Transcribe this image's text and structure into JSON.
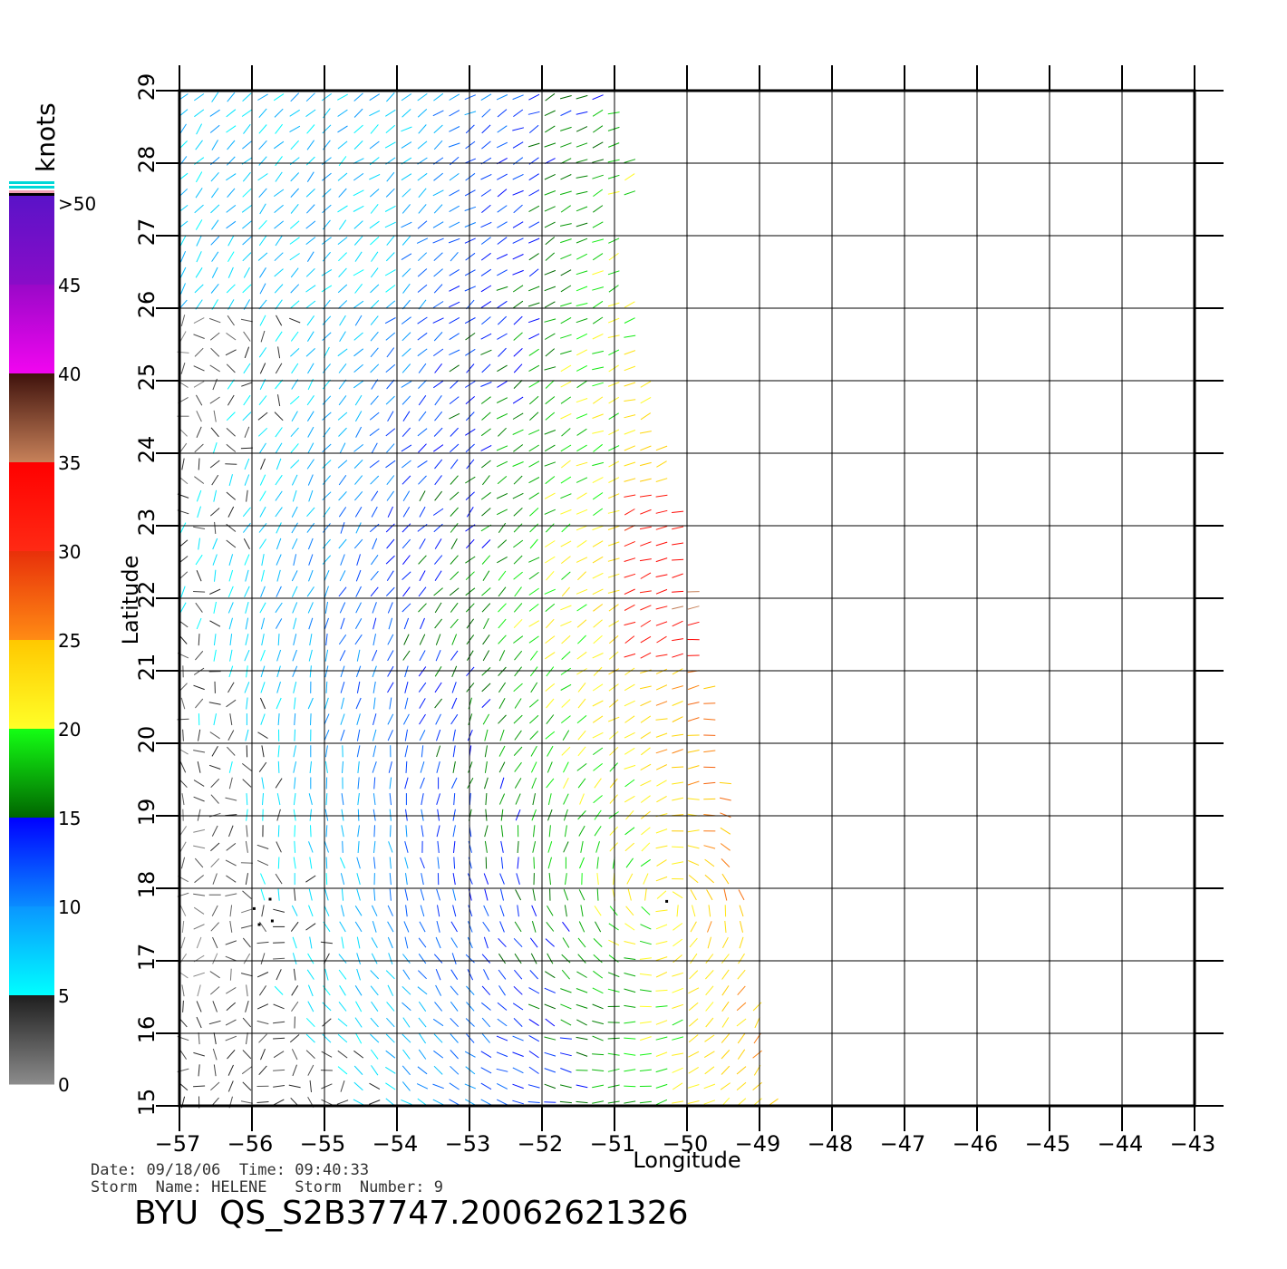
{
  "colorbar": {
    "unit_label": "knots",
    "tick_labels": [
      ">50",
      "45",
      "40",
      "35",
      "30",
      "25",
      "20",
      "15",
      "10",
      "5",
      "0"
    ],
    "segments": [
      {
        "from": 50,
        "to": 45,
        "top": "#5a13c8",
        "bottom": "#8a0cc8"
      },
      {
        "from": 45,
        "to": 40,
        "top": "#9a08c8",
        "bottom": "#f205f0"
      },
      {
        "from": 40,
        "to": 35,
        "top": "#3f120c",
        "bottom": "#c8825a"
      },
      {
        "from": 35,
        "to": 30,
        "top": "#ff0000",
        "bottom": "#ff2a14"
      },
      {
        "from": 30,
        "to": 25,
        "top": "#e8300a",
        "bottom": "#ff8c14"
      },
      {
        "from": 25,
        "to": 20,
        "top": "#ffc800",
        "bottom": "#ffff28"
      },
      {
        "from": 20,
        "to": 15,
        "top": "#14ff14",
        "bottom": "#006400"
      },
      {
        "from": 15,
        "to": 10,
        "top": "#0000ff",
        "bottom": "#0a8cff"
      },
      {
        "from": 10,
        "to": 5,
        "top": "#0a96ff",
        "bottom": "#00ffff"
      },
      {
        "from": 5,
        "to": 0,
        "top": "#1e1e1e",
        "bottom": "#8c8c8c"
      }
    ]
  },
  "map": {
    "lon_ticks": [
      "-57",
      "-56",
      "-55",
      "-54",
      "-53",
      "-52",
      "-51",
      "-50",
      "-49",
      "-48",
      "-47",
      "-46",
      "-45",
      "-44",
      "-43"
    ],
    "lat_ticks": [
      "15",
      "16",
      "17",
      "18",
      "19",
      "20",
      "21",
      "22",
      "23",
      "24",
      "25",
      "26",
      "27",
      "28",
      "29"
    ],
    "xlabel": "Longitude",
    "ylabel": "Latitude",
    "lon_range": [
      -57,
      -43
    ],
    "lat_range": [
      15,
      29
    ]
  },
  "meta": {
    "date_label": "Date:",
    "date": "09/18/06",
    "time_label": "Time:",
    "time": "09:40:33",
    "storm_name_label": "Storm  Name:",
    "storm_name": "HELENE",
    "storm_number_label": "Storm  Number:",
    "storm_number": "9"
  },
  "title": "BYU  QS_S2B37747.20062621326"
}
